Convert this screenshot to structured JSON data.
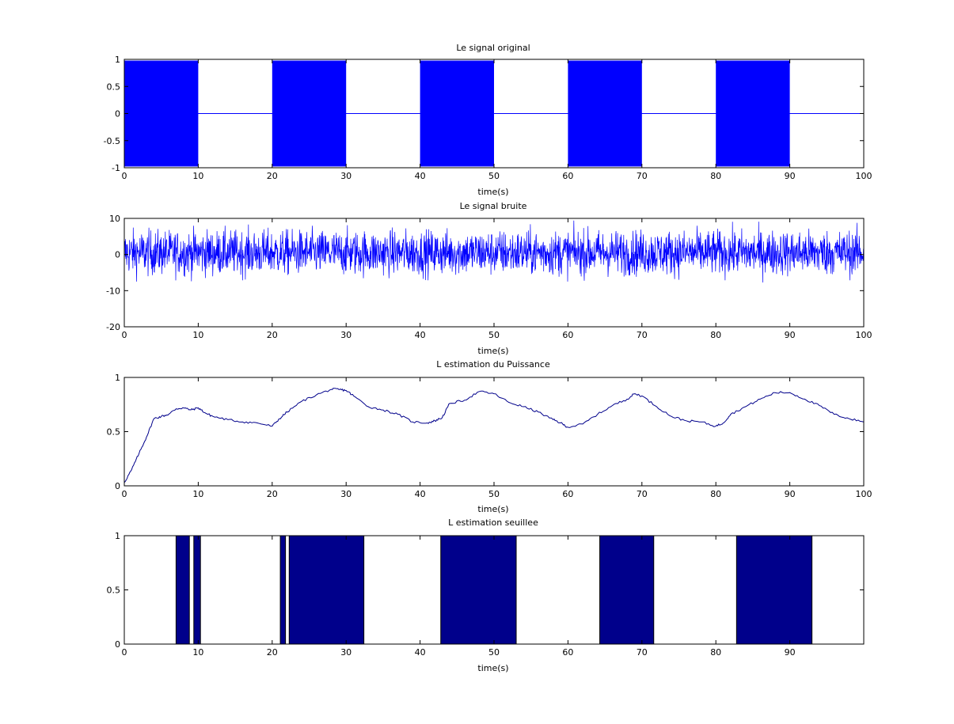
{
  "figure": {
    "background": "#ffffff",
    "signal_color": "#0000ff",
    "estimate_color": "#00008b",
    "threshold_fill": "#00008b"
  },
  "chart_data": [
    {
      "type": "line",
      "title": "Le signal original",
      "xlabel": "time(s)",
      "ylabel": "",
      "xlim": [
        0,
        100
      ],
      "ylim": [
        -1,
        1
      ],
      "xticks": [
        0,
        10,
        20,
        30,
        40,
        50,
        60,
        70,
        80,
        90,
        100
      ],
      "xtick_labels": [
        "0",
        "10",
        "20",
        "30",
        "40",
        "50",
        "60",
        "70",
        "80",
        "90",
        "100"
      ],
      "yticks": [
        -1,
        -0.5,
        0,
        0.5,
        1
      ],
      "ytick_labels": [
        "-1",
        "-0.5",
        "0",
        "0.5",
        "1"
      ],
      "description_style": "dense oscillation",
      "series": [
        {
          "on_intervals": [
            [
              0,
              10
            ],
            [
              20,
              30
            ],
            [
              40,
              50
            ],
            [
              60,
              70
            ],
            [
              80,
              90
            ]
          ],
          "amplitude": 0.97,
          "off_value": 0
        }
      ]
    },
    {
      "type": "line",
      "title": "Le signal bruite",
      "xlabel": "time(s)",
      "ylabel": "",
      "xlim": [
        0,
        100
      ],
      "ylim": [
        -20,
        10
      ],
      "xticks": [
        0,
        10,
        20,
        30,
        40,
        50,
        60,
        70,
        80,
        90,
        100
      ],
      "xtick_labels": [
        "0",
        "10",
        "20",
        "30",
        "40",
        "50",
        "60",
        "70",
        "80",
        "90",
        "100"
      ],
      "yticks": [
        -20,
        -10,
        0,
        10
      ],
      "ytick_labels": [
        "-20",
        "-10",
        "0",
        "10"
      ],
      "series": [
        {
          "band_typical": [
            -5,
            6
          ],
          "peak_min": -10.5,
          "peak_max": 10
        }
      ]
    },
    {
      "type": "line",
      "title": "L estimation du Puissance",
      "xlabel": "time(s)",
      "ylabel": "",
      "xlim": [
        0,
        100
      ],
      "ylim": [
        0,
        1
      ],
      "xticks": [
        0,
        10,
        20,
        30,
        40,
        50,
        60,
        70,
        80,
        90,
        100
      ],
      "xtick_labels": [
        "0",
        "10",
        "20",
        "30",
        "40",
        "50",
        "60",
        "70",
        "80",
        "90",
        "100"
      ],
      "yticks": [
        0,
        0.5,
        1
      ],
      "ytick_labels": [
        "0",
        "0.5",
        "1"
      ],
      "series": [
        {
          "x": [
            0,
            1,
            2,
            3,
            4,
            5,
            6,
            7,
            8,
            9,
            10,
            11,
            12,
            14,
            16,
            18,
            20,
            21,
            22,
            24,
            26,
            28,
            29,
            30,
            31,
            33,
            35,
            37,
            39,
            41,
            42,
            43,
            44,
            46,
            48,
            50,
            52,
            54,
            56,
            58,
            59,
            60,
            62,
            64,
            66,
            68,
            69,
            70,
            72,
            74,
            76,
            78,
            80,
            81,
            82,
            84,
            86,
            88,
            90,
            92,
            94,
            96,
            98,
            100
          ],
          "y": [
            0.03,
            0.15,
            0.3,
            0.45,
            0.62,
            0.64,
            0.66,
            0.71,
            0.72,
            0.7,
            0.72,
            0.67,
            0.64,
            0.61,
            0.59,
            0.58,
            0.55,
            0.62,
            0.68,
            0.78,
            0.84,
            0.89,
            0.89,
            0.88,
            0.83,
            0.73,
            0.7,
            0.66,
            0.59,
            0.58,
            0.6,
            0.63,
            0.76,
            0.79,
            0.87,
            0.85,
            0.77,
            0.73,
            0.68,
            0.61,
            0.58,
            0.54,
            0.57,
            0.66,
            0.74,
            0.8,
            0.85,
            0.83,
            0.73,
            0.64,
            0.6,
            0.59,
            0.55,
            0.58,
            0.66,
            0.73,
            0.8,
            0.86,
            0.86,
            0.8,
            0.74,
            0.66,
            0.62,
            0.59
          ]
        }
      ]
    },
    {
      "type": "bar",
      "title": "L estimation seuillee",
      "xlabel": "time(s)",
      "ylabel": "",
      "xlim": [
        0,
        100
      ],
      "ylim": [
        0,
        1
      ],
      "xticks": [
        0,
        10,
        20,
        30,
        40,
        50,
        60,
        70,
        80,
        90
      ],
      "xtick_labels": [
        "0",
        "10",
        "20",
        "30",
        "40",
        "50",
        "60",
        "70",
        "80",
        "90"
      ],
      "yticks": [
        0,
        0.5,
        1
      ],
      "ytick_labels": [
        "0",
        "0.5",
        "1"
      ],
      "series": [
        {
          "intervals": [
            [
              7.0,
              8.8
            ],
            [
              9.4,
              10.3
            ],
            [
              21.1,
              21.8
            ],
            [
              22.3,
              32.4
            ],
            [
              42.8,
              53.0
            ],
            [
              64.3,
              71.6
            ],
            [
              82.8,
              93.0
            ]
          ],
          "value": 1
        }
      ]
    }
  ]
}
